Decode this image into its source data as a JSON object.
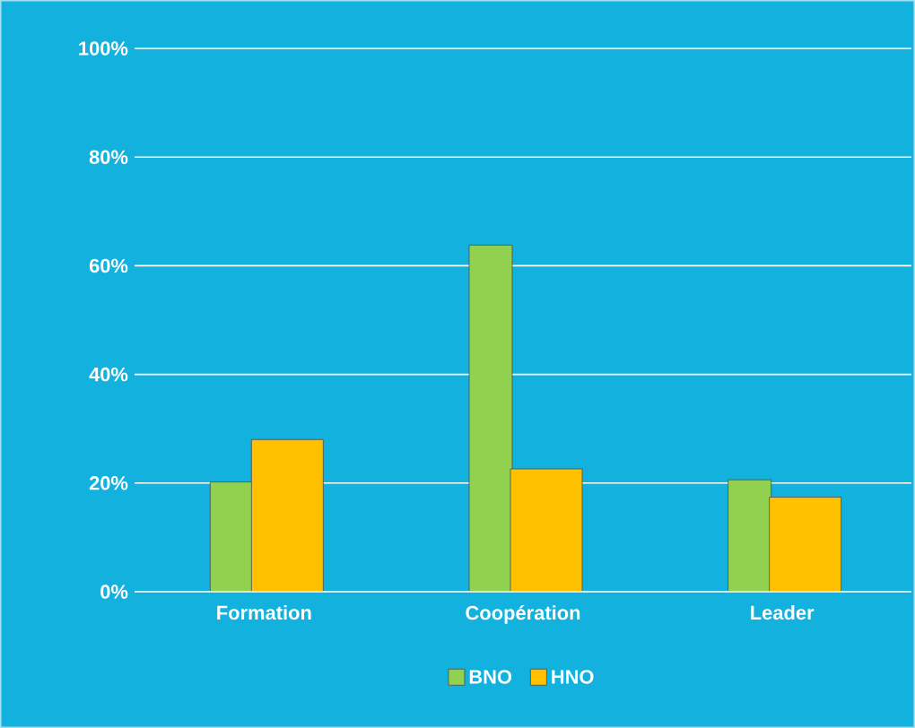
{
  "chart_data": {
    "type": "bar",
    "categories": [
      "Formation",
      "Coopération",
      "Leader"
    ],
    "series": [
      {
        "name": "BNO",
        "color": "#92d050",
        "values": [
          20.2,
          63.8,
          20.6
        ]
      },
      {
        "name": "HNO",
        "color": "#ffc000",
        "values": [
          28.0,
          22.6,
          17.4
        ]
      }
    ],
    "ylim": [
      0,
      100
    ],
    "yticks": [
      {
        "value": 0,
        "label": "0%"
      },
      {
        "value": 20,
        "label": "20%"
      },
      {
        "value": 40,
        "label": "40%"
      },
      {
        "value": 60,
        "label": "60%"
      },
      {
        "value": 80,
        "label": "80%"
      },
      {
        "value": 100,
        "label": "100%"
      }
    ],
    "grid": "y",
    "legend": "bottom"
  }
}
